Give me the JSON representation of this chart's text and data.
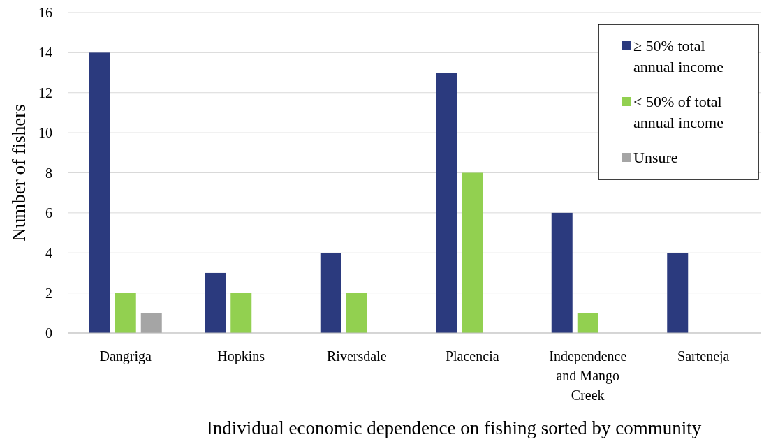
{
  "chart_data": {
    "type": "bar",
    "xlabel": "Individual economic dependence on fishing sorted by community",
    "ylabel": "Number of fishers",
    "categories": [
      "Dangriga",
      "Hopkins",
      "Riversdale",
      "Placencia",
      "Independence and Mango Creek",
      "Sarteneja"
    ],
    "series": [
      {
        "name": "≥ 50% total annual income",
        "color": "#2b3a7e",
        "values": [
          14,
          3,
          4,
          13,
          6,
          4
        ]
      },
      {
        "name": "< 50% of total annual income",
        "color": "#92d050",
        "values": [
          2,
          2,
          2,
          8,
          1,
          0
        ]
      },
      {
        "name": "Unsure",
        "color": "#a5a5a5",
        "values": [
          1,
          0,
          0,
          0,
          0,
          0
        ]
      }
    ],
    "ylim": [
      0,
      16
    ],
    "yticks": [
      0,
      2,
      4,
      6,
      8,
      10,
      12,
      14,
      16
    ],
    "grid": "y",
    "legend": "top right"
  }
}
